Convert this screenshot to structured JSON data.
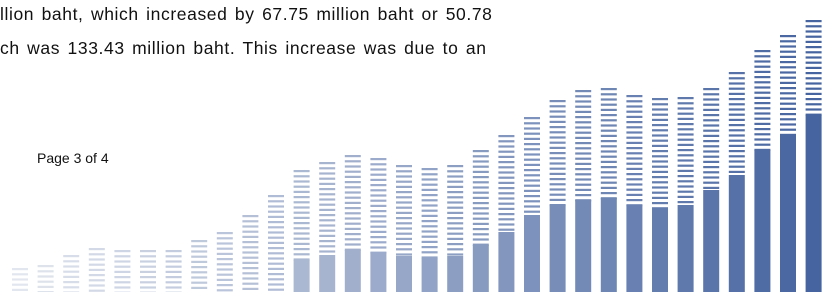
{
  "body": {
    "lines": [
      "llion baht, which increased by 67.75 million baht or 50.78",
      "ch was 133.43 million baht. This increase was due to an"
    ]
  },
  "footer": {
    "page": "Page 3 of 4"
  }
}
